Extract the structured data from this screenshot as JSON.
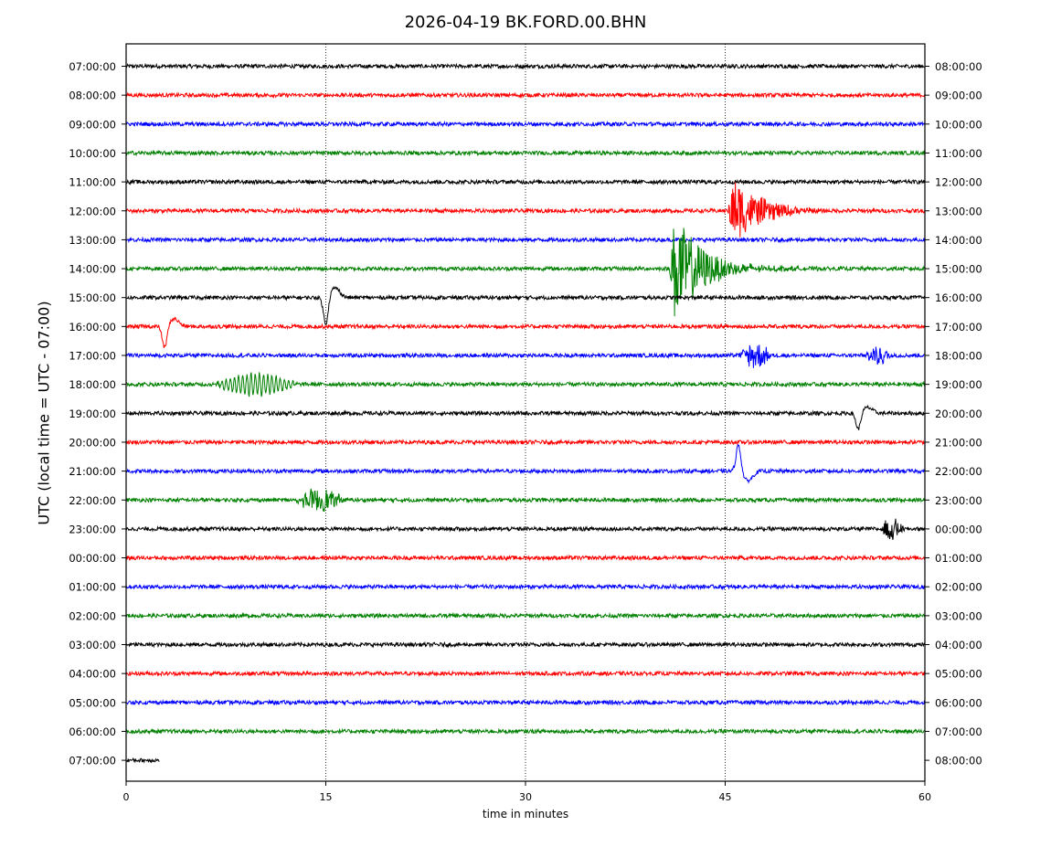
{
  "chart_data": {
    "type": "line",
    "subtype": "helicorder",
    "title": "2026-04-19 BK.FORD.00.BHN",
    "xlabel": "time in minutes",
    "ylabel": "UTC (local time = UTC - 07:00)",
    "xlim": [
      0,
      60
    ],
    "x_ticks": [
      0,
      15,
      30,
      45,
      60
    ],
    "x_tick_labels": [
      "0",
      "15",
      "30",
      "45",
      "60"
    ],
    "vertical_gridlines": [
      15,
      30,
      45
    ],
    "grid_style": "dotted",
    "line_colors": [
      "#000000",
      "#ff0000",
      "#0000ff",
      "#008000"
    ],
    "rows": [
      {
        "left": "07:00:00",
        "right": "08:00:00",
        "color": "#000000",
        "end_min": 60
      },
      {
        "left": "08:00:00",
        "right": "09:00:00",
        "color": "#ff0000",
        "end_min": 60
      },
      {
        "left": "09:00:00",
        "right": "10:00:00",
        "color": "#0000ff",
        "end_min": 60
      },
      {
        "left": "10:00:00",
        "right": "11:00:00",
        "color": "#008000",
        "end_min": 60
      },
      {
        "left": "11:00:00",
        "right": "12:00:00",
        "color": "#000000",
        "end_min": 60
      },
      {
        "left": "12:00:00",
        "right": "13:00:00",
        "color": "#ff0000",
        "end_min": 60
      },
      {
        "left": "13:00:00",
        "right": "14:00:00",
        "color": "#0000ff",
        "end_min": 60
      },
      {
        "left": "14:00:00",
        "right": "15:00:00",
        "color": "#008000",
        "end_min": 60
      },
      {
        "left": "15:00:00",
        "right": "16:00:00",
        "color": "#000000",
        "end_min": 60
      },
      {
        "left": "16:00:00",
        "right": "17:00:00",
        "color": "#ff0000",
        "end_min": 60
      },
      {
        "left": "17:00:00",
        "right": "18:00:00",
        "color": "#0000ff",
        "end_min": 60
      },
      {
        "left": "18:00:00",
        "right": "19:00:00",
        "color": "#008000",
        "end_min": 60
      },
      {
        "left": "19:00:00",
        "right": "20:00:00",
        "color": "#000000",
        "end_min": 60
      },
      {
        "left": "20:00:00",
        "right": "21:00:00",
        "color": "#ff0000",
        "end_min": 60
      },
      {
        "left": "21:00:00",
        "right": "22:00:00",
        "color": "#0000ff",
        "end_min": 60
      },
      {
        "left": "22:00:00",
        "right": "23:00:00",
        "color": "#008000",
        "end_min": 60
      },
      {
        "left": "23:00:00",
        "right": "00:00:00",
        "color": "#000000",
        "end_min": 60
      },
      {
        "left": "00:00:00",
        "right": "01:00:00",
        "color": "#ff0000",
        "end_min": 60
      },
      {
        "left": "01:00:00",
        "right": "02:00:00",
        "color": "#0000ff",
        "end_min": 60
      },
      {
        "left": "02:00:00",
        "right": "03:00:00",
        "color": "#008000",
        "end_min": 60
      },
      {
        "left": "03:00:00",
        "right": "04:00:00",
        "color": "#000000",
        "end_min": 60
      },
      {
        "left": "04:00:00",
        "right": "05:00:00",
        "color": "#ff0000",
        "end_min": 60
      },
      {
        "left": "05:00:00",
        "right": "06:00:00",
        "color": "#0000ff",
        "end_min": 60
      },
      {
        "left": "06:00:00",
        "right": "07:00:00",
        "color": "#008000",
        "end_min": 60
      },
      {
        "left": "07:00:00",
        "right": "08:00:00",
        "color": "#000000",
        "end_min": 2.5
      }
    ],
    "events": [
      {
        "kind": "earthquake",
        "row": 5,
        "start_min": 45.2,
        "end_min": 52,
        "peak": 0.6
      },
      {
        "kind": "earthquake",
        "row": 7,
        "start_min": 40.8,
        "end_min": 52,
        "peak": 1.0
      },
      {
        "kind": "pulse",
        "row": 8,
        "center_min": 15.0,
        "peak": 0.5
      },
      {
        "kind": "pulse",
        "row": 9,
        "center_min": 2.9,
        "peak": 0.4
      },
      {
        "kind": "pulse",
        "row": 14,
        "center_min": 46.0,
        "peak": -0.5
      },
      {
        "kind": "pulse",
        "row": 12,
        "center_min": 55.0,
        "peak": 0.3
      },
      {
        "kind": "wavetrain",
        "row": 11,
        "start_min": 6.5,
        "end_min": 13,
        "peak": 0.2
      },
      {
        "kind": "burst",
        "row": 10,
        "start_min": 46,
        "end_min": 48.5,
        "peak": 0.25
      },
      {
        "kind": "burst",
        "row": 10,
        "start_min": 55.5,
        "end_min": 57.5,
        "peak": 0.18
      },
      {
        "kind": "burst",
        "row": 15,
        "start_min": 12.5,
        "end_min": 16.5,
        "peak": 0.2
      },
      {
        "kind": "burst",
        "row": 16,
        "start_min": 56.5,
        "end_min": 58.5,
        "peak": 0.2
      }
    ]
  }
}
